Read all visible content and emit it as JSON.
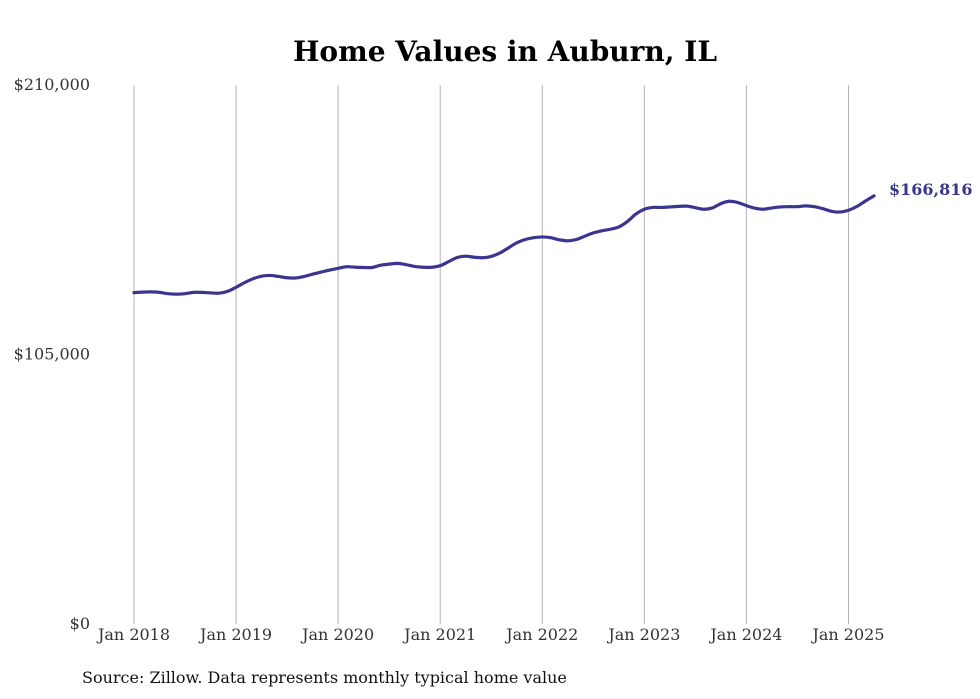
{
  "chart_data": {
    "type": "line",
    "title": "Home Values in Auburn, IL",
    "xlabel": "",
    "ylabel": "",
    "ylim": [
      0,
      210000
    ],
    "y_ticks": [
      {
        "value": 0,
        "label": "$0"
      },
      {
        "value": 105000,
        "label": "$105,000"
      },
      {
        "value": 210000,
        "label": "$210,000"
      }
    ],
    "x_ticks": [
      {
        "index": 0,
        "label": "Jan 2018"
      },
      {
        "index": 12,
        "label": "Jan 2019"
      },
      {
        "index": 24,
        "label": "Jan 2020"
      },
      {
        "index": 36,
        "label": "Jan 2021"
      },
      {
        "index": 48,
        "label": "Jan 2022"
      },
      {
        "index": 60,
        "label": "Jan 2023"
      },
      {
        "index": 72,
        "label": "Jan 2024"
      },
      {
        "index": 84,
        "label": "Jan 2025"
      }
    ],
    "grid": {
      "vertical": true,
      "horizontal": false
    },
    "series": [
      {
        "name": "Typical home value",
        "color": "#3b3590",
        "end_label": "$166,816",
        "values": [
          129100,
          129300,
          129400,
          129200,
          128700,
          128500,
          128700,
          129200,
          129200,
          129000,
          128900,
          129600,
          131200,
          133000,
          134500,
          135500,
          135800,
          135400,
          134900,
          134800,
          135400,
          136300,
          137100,
          137900,
          138600,
          139200,
          139000,
          138900,
          138900,
          139800,
          140200,
          140500,
          140000,
          139300,
          139000,
          139000,
          139600,
          141200,
          142800,
          143300,
          142900,
          142700,
          143200,
          144500,
          146500,
          148500,
          149800,
          150500,
          150800,
          150500,
          149700,
          149300,
          149800,
          151100,
          152400,
          153200,
          153800,
          154700,
          156800,
          159700,
          161600,
          162300,
          162300,
          162500,
          162700,
          162800,
          162200,
          161600,
          162100,
          163800,
          164700,
          164200,
          163000,
          162000,
          161600,
          162100,
          162500,
          162600,
          162600,
          162900,
          162600,
          161800,
          160800,
          160500,
          161200,
          162700,
          164800,
          166816
        ]
      }
    ]
  },
  "footer": {
    "source": "Source: Zillow. Data represents monthly typical home value"
  }
}
